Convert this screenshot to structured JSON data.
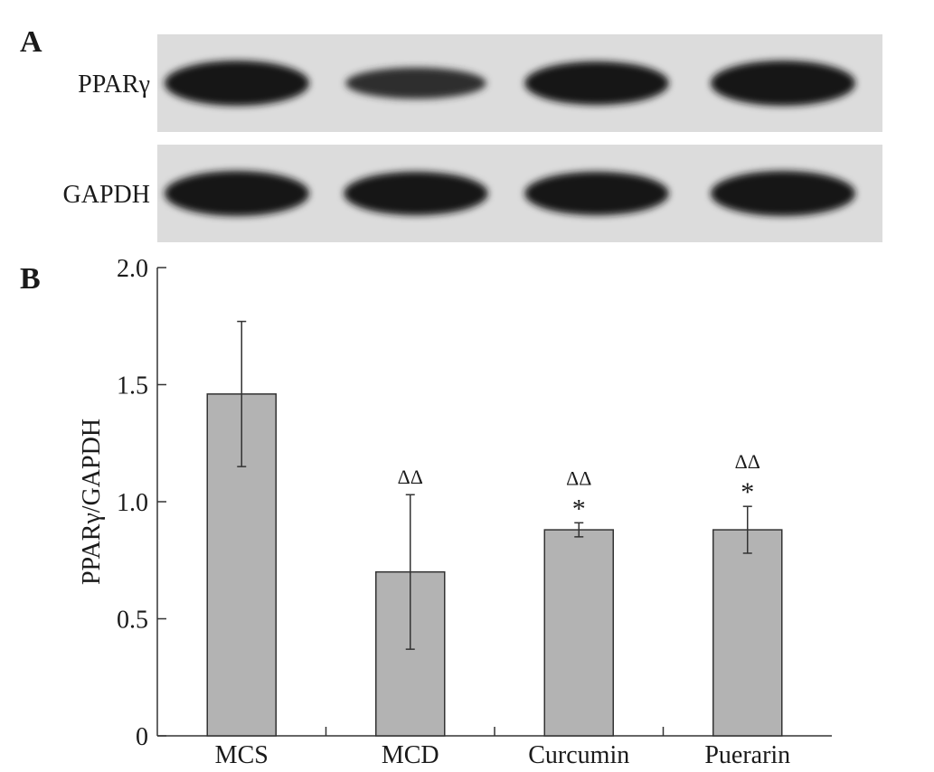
{
  "panels": {
    "a_label": "A",
    "b_label": "B"
  },
  "blot": {
    "rows": [
      {
        "label": "PPARγ",
        "lane_intensities": [
          1.0,
          0.55,
          0.95,
          1.0
        ]
      },
      {
        "label": "GAPDH",
        "lane_intensities": [
          1.0,
          0.95,
          0.95,
          1.0
        ]
      }
    ]
  },
  "chart_data": {
    "type": "bar",
    "categories": [
      "MCS",
      "MCD",
      "Curcumin",
      "Puerarin"
    ],
    "values": [
      1.46,
      0.7,
      0.88,
      0.88
    ],
    "errors": [
      0.31,
      0.33,
      0.03,
      0.1
    ],
    "annotations": [
      "",
      "ΔΔ",
      "ΔΔ *",
      "ΔΔ *"
    ],
    "annotation_parts": [
      [],
      [
        "ΔΔ"
      ],
      [
        "ΔΔ",
        "*"
      ],
      [
        "ΔΔ",
        "*"
      ]
    ],
    "title": "",
    "xlabel": "",
    "ylabel": "PPARγ/GAPDH",
    "ylim": [
      0,
      2.0
    ],
    "yticks": [
      0,
      0.5,
      1.0,
      1.5,
      2.0
    ],
    "ytick_labels": [
      "0",
      "0.5",
      "1.0",
      "1.5",
      "2.0"
    ],
    "grid": false,
    "colors": {
      "bar_fill": "#b3b3b3",
      "bar_stroke": "#333333",
      "axis": "#333333"
    }
  }
}
